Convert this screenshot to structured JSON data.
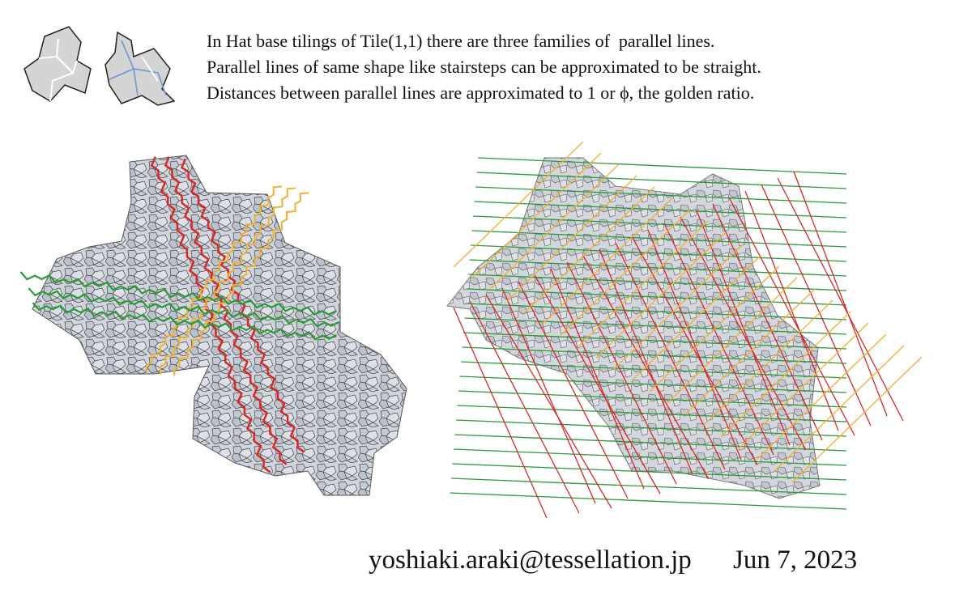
{
  "header": {
    "lines": [
      "In Hat base tilings of Tile(1,1) there are three families of  parallel lines.",
      "Parallel lines of same shape like stairsteps can be approximated to be straight.",
      "Distances between parallel lines are approximated to 1 or ϕ, the golden ratio."
    ]
  },
  "footer": {
    "credit": "yoshiaki.araki@tessellation.jp",
    "date": "Jun 7, 2023"
  }
}
